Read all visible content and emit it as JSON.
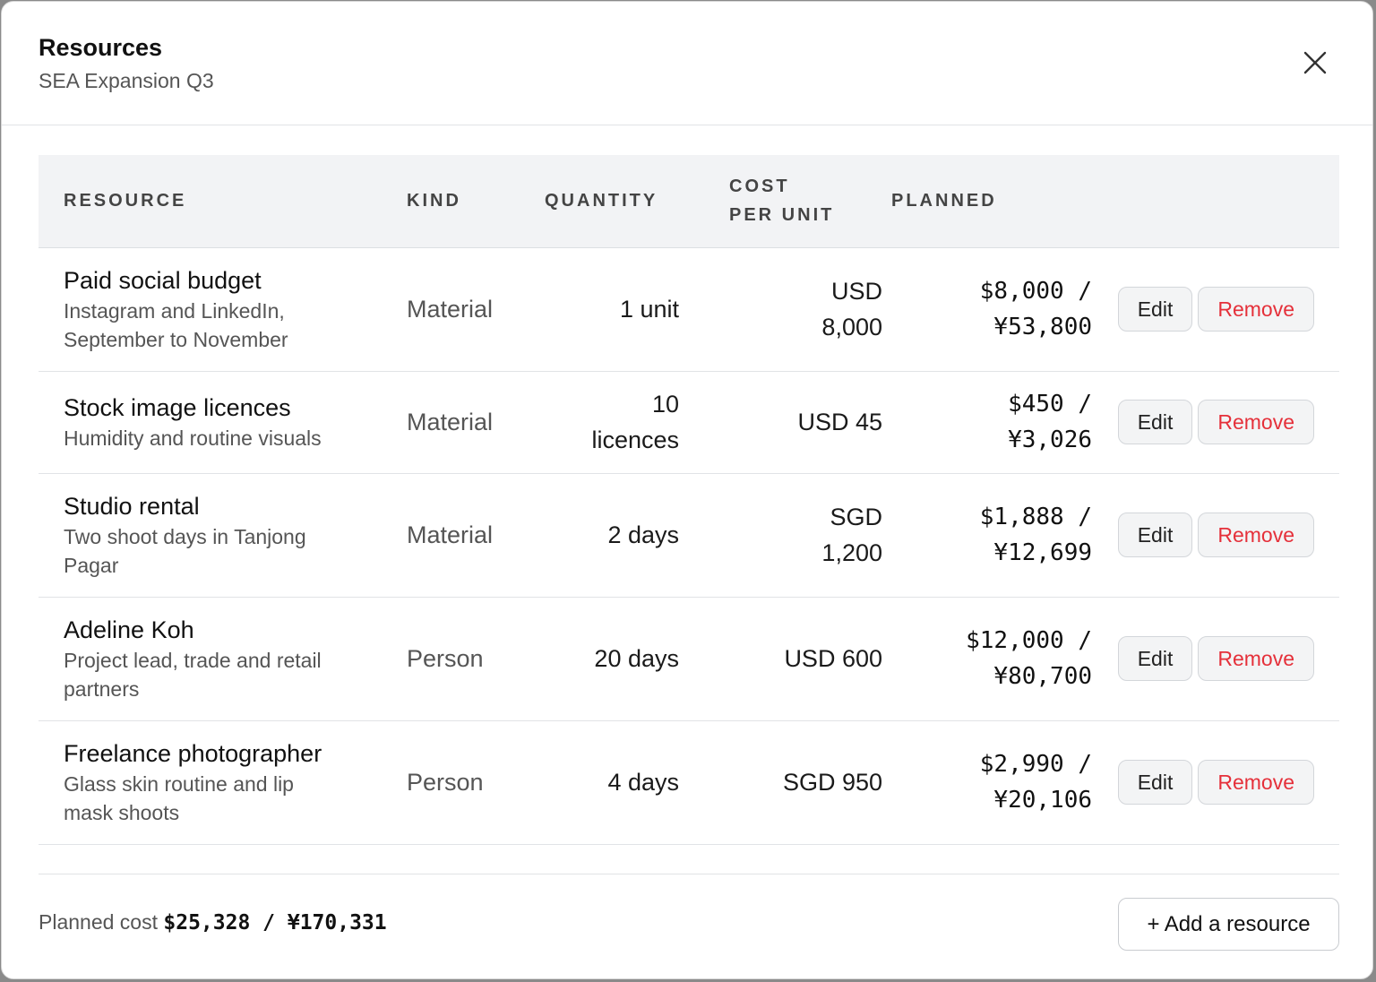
{
  "dialog": {
    "title": "Resources",
    "subtitle": "SEA Expansion Q3",
    "close_icon": "close-icon"
  },
  "table": {
    "headers": {
      "resource": "RESOURCE",
      "kind": "KIND",
      "quantity": "QUANTITY",
      "cost_line1": "COST",
      "cost_line2": "PER UNIT",
      "planned": "PLANNED"
    },
    "rows": [
      {
        "name": "Paid social budget",
        "desc_line1": "Instagram and LinkedIn,",
        "desc_line2": "September to November",
        "kind": "Material",
        "qty_line1": "1 unit",
        "qty_line2": "",
        "cost_line1": "USD",
        "cost_line2": "8,000",
        "planned_line1": "$8,000 /",
        "planned_line2": "¥53,800",
        "edit_label": "Edit",
        "remove_label": "Remove"
      },
      {
        "name": "Stock image licences",
        "desc_line1": "Humidity and routine visuals",
        "desc_line2": "",
        "kind": "Material",
        "qty_line1": "10",
        "qty_line2": "licences",
        "cost_line1": "USD 45",
        "cost_line2": "",
        "planned_line1": "$450 /",
        "planned_line2": "¥3,026",
        "edit_label": "Edit",
        "remove_label": "Remove"
      },
      {
        "name": "Studio rental",
        "desc_line1": "Two shoot days in Tanjong",
        "desc_line2": "Pagar",
        "kind": "Material",
        "qty_line1": "2 days",
        "qty_line2": "",
        "cost_line1": "SGD",
        "cost_line2": "1,200",
        "planned_line1": "$1,888 /",
        "planned_line2": "¥12,699",
        "edit_label": "Edit",
        "remove_label": "Remove"
      },
      {
        "name": "Adeline Koh",
        "desc_line1": "Project lead, trade and retail",
        "desc_line2": "partners",
        "kind": "Person",
        "qty_line1": "20 days",
        "qty_line2": "",
        "cost_line1": "USD 600",
        "cost_line2": "",
        "planned_line1": "$12,000 /",
        "planned_line2": "¥80,700",
        "edit_label": "Edit",
        "remove_label": "Remove"
      },
      {
        "name": "Freelance photographer",
        "desc_line1": "Glass skin routine and lip",
        "desc_line2": "mask shoots",
        "kind": "Person",
        "qty_line1": "4 days",
        "qty_line2": "",
        "cost_line1": "SGD 950",
        "cost_line2": "",
        "planned_line1": "$2,990 /",
        "planned_line2": "¥20,106",
        "edit_label": "Edit",
        "remove_label": "Remove"
      }
    ]
  },
  "footer": {
    "planned_label": "Planned cost",
    "planned_total": "$25,328 / ¥170,331",
    "add_label": "+ Add a resource"
  },
  "colors": {
    "accent_danger": "#e5303a",
    "header_bg": "#f2f3f5"
  }
}
